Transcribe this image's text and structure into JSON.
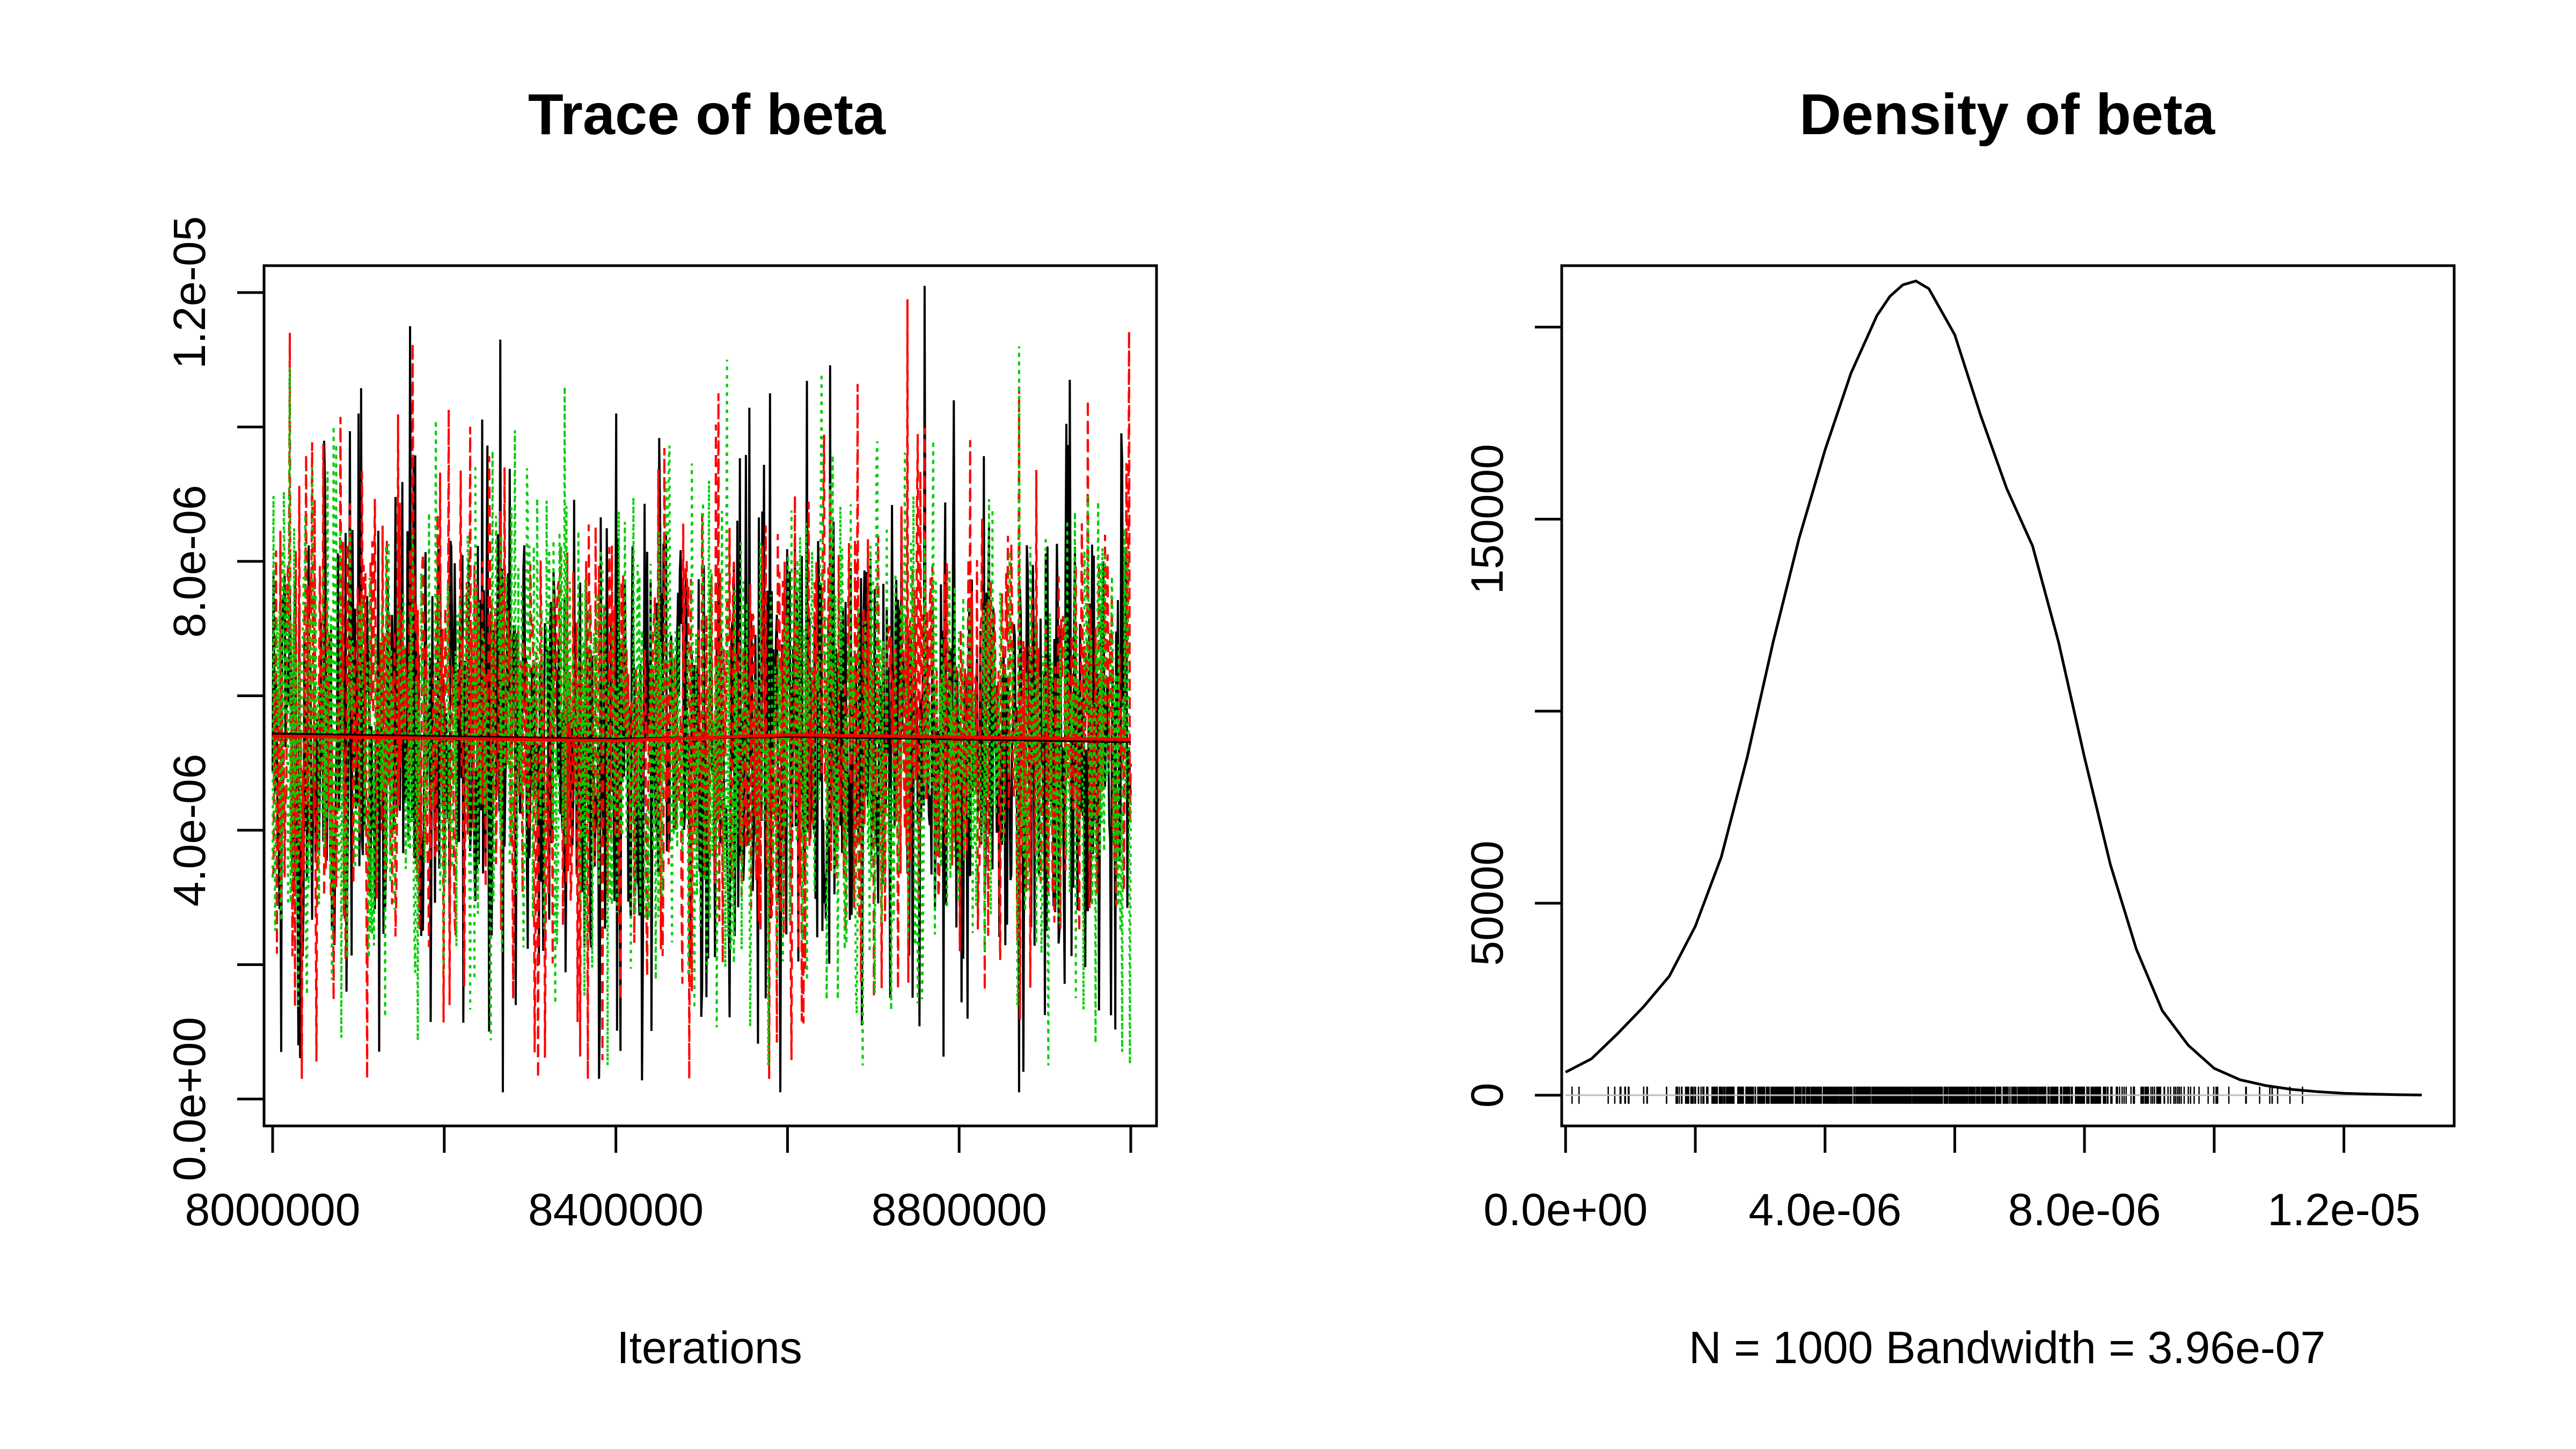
{
  "chart_data": [
    {
      "type": "line",
      "title": "Trace of beta",
      "xlabel": "Iterations",
      "ylabel": "",
      "xlim": [
        7990000,
        9030000
      ],
      "ylim": [
        -4e-07,
        1.24e-05
      ],
      "xticks": [
        8000000,
        8200000,
        8400000,
        8600000,
        8800000,
        9000000
      ],
      "xtick_labels": [
        "8000000",
        "",
        "8400000",
        "",
        "8800000",
        ""
      ],
      "yticks": [
        0,
        2e-06,
        4e-06,
        6e-06,
        8e-06,
        1e-05,
        1.2e-05
      ],
      "ytick_labels": [
        "0.0e+00",
        "",
        "4.0e-06",
        "",
        "8.0e-06",
        "",
        "1.2e-05"
      ],
      "grid": false,
      "iterations": {
        "start": 8000000,
        "end": 9000000,
        "count": 1000
      },
      "series": [
        {
          "color": "#000000",
          "dash": "solid",
          "mean": 5.4e-06,
          "min": 1e-07,
          "max": 1.21e-05,
          "spikes": [
            [
              8010000,
              7e-07
            ],
            [
              8030000,
              8e-07
            ],
            [
              8100000,
              1.02e-05
            ],
            [
              8160000,
              1.15e-05
            ],
            [
              8265000,
              1.13e-05
            ],
            [
              8400000,
              1.02e-05
            ],
            [
              8380000,
              3e-07
            ],
            [
              8580000,
              1.05e-05
            ],
            [
              8760000,
              1.21e-05
            ],
            [
              8870000,
              1e-07
            ],
            [
              8990000,
              9.5e-06
            ]
          ]
        },
        {
          "color": "#ff0000",
          "dash": "dashed",
          "mean": 5.4e-06,
          "min": 3e-07,
          "max": 1.19e-05,
          "spikes": [
            [
              8020000,
              1.14e-05
            ],
            [
              8110000,
              3e-07
            ],
            [
              8270000,
              9.4e-06
            ],
            [
              8520000,
              1.05e-05
            ],
            [
              8740000,
              1.19e-05
            ],
            [
              8870000,
              1.06e-05
            ],
            [
              8950000,
              1.04e-05
            ]
          ]
        },
        {
          "color": "#00cd00",
          "dash": "dotted",
          "mean": 5.4e-06,
          "min": 5e-07,
          "max": 1.12e-05,
          "spikes": [
            [
              8020000,
              1.09e-05
            ],
            [
              8190000,
              1.01e-05
            ],
            [
              8340000,
              1.06e-05
            ],
            [
              8530000,
              1.1e-05
            ],
            [
              8640000,
              1.08e-05
            ],
            [
              8870000,
              1.12e-05
            ],
            [
              8990000,
              7e-07
            ]
          ]
        }
      ],
      "running_mean": [
        {
          "color": "#000000",
          "values": [
            [
              8000000,
              5.43e-06
            ],
            [
              8400000,
              5.35e-06
            ],
            [
              8600000,
              5.4e-06
            ],
            [
              9000000,
              5.32e-06
            ]
          ]
        },
        {
          "color": "#ff0000",
          "values": [
            [
              8000000,
              5.4e-06
            ],
            [
              8400000,
              5.33e-06
            ],
            [
              8600000,
              5.42e-06
            ],
            [
              9000000,
              5.35e-06
            ]
          ]
        }
      ]
    },
    {
      "type": "line",
      "title": "Density of beta",
      "xlabel": "N = 1000   Bandwidth = 3.96e-07",
      "ylabel": "",
      "xlim": [
        -6e-08,
        1.37e-05
      ],
      "ylim": [
        -8000,
        216000
      ],
      "xticks": [
        0,
        2e-06,
        4e-06,
        6e-06,
        8e-06,
        1e-05,
        1.2e-05
      ],
      "xtick_labels": [
        "0.0e+00",
        "",
        "4.0e-06",
        "",
        "8.0e-06",
        "",
        "1.2e-05"
      ],
      "yticks": [
        0,
        50000,
        100000,
        150000,
        200000
      ],
      "ytick_labels": [
        "0",
        "50000",
        "",
        "150000",
        ""
      ],
      "grid": false,
      "x": [
        0.0,
        4e-07,
        8e-07,
        1.2e-06,
        1.6e-06,
        2e-06,
        2.4e-06,
        2.8e-06,
        3.2e-06,
        3.6e-06,
        4e-06,
        4.4e-06,
        4.8e-06,
        5e-06,
        5.2e-06,
        5.4e-06,
        5.6e-06,
        6e-06,
        6.4e-06,
        6.8e-06,
        7.2e-06,
        7.6e-06,
        8e-06,
        8.4e-06,
        8.8e-06,
        9.2e-06,
        9.6e-06,
        1e-05,
        1.04e-05,
        1.08e-05,
        1.12e-05,
        1.16e-05,
        1.2e-05,
        1.24e-05,
        1.28e-05,
        1.32e-05
      ],
      "y": [
        6000,
        9500,
        16000,
        23000,
        31000,
        44000,
        62000,
        88000,
        118000,
        145000,
        168000,
        188000,
        203000,
        208000,
        211000,
        212000,
        210000,
        198000,
        177000,
        158000,
        143000,
        118000,
        88000,
        60000,
        38000,
        22000,
        13000,
        7000,
        4000,
        2500,
        1500,
        900,
        500,
        300,
        150,
        50
      ],
      "rug": {
        "n": 1000,
        "min": 1e-07,
        "max": 1.21e-05
      }
    }
  ]
}
